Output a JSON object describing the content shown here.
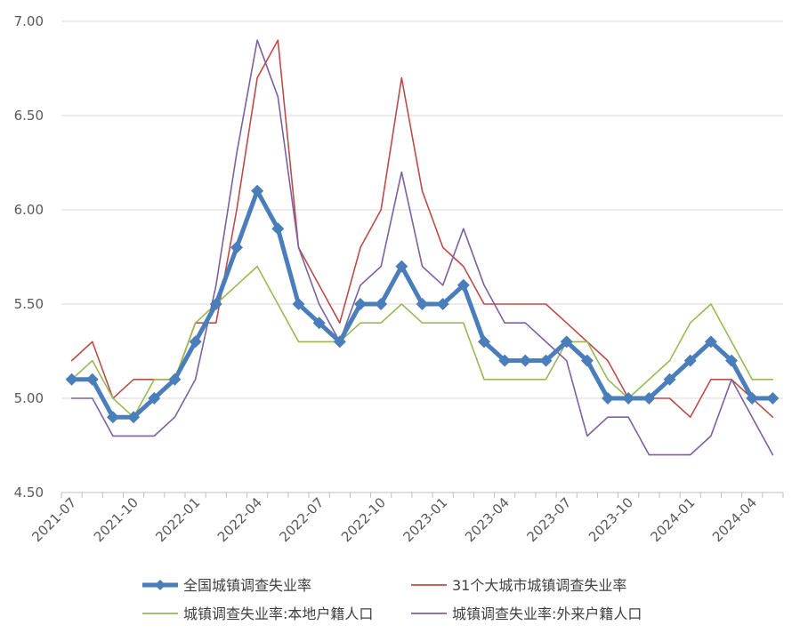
{
  "chart_data": {
    "type": "line",
    "title": "",
    "xlabel": "",
    "ylabel": "",
    "ylim": [
      4.5,
      7.0
    ],
    "yticks": [
      "4.50",
      "5.00",
      "5.50",
      "6.00",
      "6.50",
      "7.00"
    ],
    "x": [
      "2021-07",
      "2021-08",
      "2021-09",
      "2021-10",
      "2021-11",
      "2021-12",
      "2022-01",
      "2022-02",
      "2022-03",
      "2022-04",
      "2022-05",
      "2022-06",
      "2022-07",
      "2022-08",
      "2022-09",
      "2022-10",
      "2022-11",
      "2022-12",
      "2023-01",
      "2023-02",
      "2023-03",
      "2023-04",
      "2023-05",
      "2023-06",
      "2023-07",
      "2023-08",
      "2023-09",
      "2023-10",
      "2023-11",
      "2023-12",
      "2024-01",
      "2024-02",
      "2024-03",
      "2024-04",
      "2024-05"
    ],
    "xtick_labels": [
      "2021-07",
      "2021-10",
      "2022-01",
      "2022-04",
      "2022-07",
      "2022-10",
      "2023-01",
      "2023-04",
      "2023-07",
      "2023-10",
      "2024-01",
      "2024-04"
    ],
    "grid": true,
    "legend_position": "bottom",
    "series": [
      {
        "name": "全国城镇调查失业率",
        "color": "#4a7ebb",
        "values": [
          5.1,
          5.1,
          4.9,
          4.9,
          5.0,
          5.1,
          5.3,
          5.5,
          5.8,
          6.1,
          5.9,
          5.5,
          5.4,
          5.3,
          5.5,
          5.5,
          5.7,
          5.5,
          5.5,
          5.6,
          5.3,
          5.2,
          5.2,
          5.2,
          5.3,
          5.2,
          5.0,
          5.0,
          5.0,
          5.1,
          5.2,
          5.3,
          5.2,
          5.0,
          5.0
        ]
      },
      {
        "name": "31个大城市城镇调查失业率",
        "color": "#be4b48",
        "values": [
          5.2,
          5.3,
          5.0,
          5.1,
          5.1,
          5.1,
          5.4,
          5.4,
          6.0,
          6.7,
          6.9,
          5.8,
          5.6,
          5.4,
          5.8,
          6.0,
          6.7,
          6.1,
          5.8,
          5.7,
          5.5,
          5.5,
          5.5,
          5.5,
          5.4,
          5.3,
          5.2,
          5.0,
          5.0,
          5.0,
          4.9,
          5.1,
          5.1,
          5.0,
          4.9
        ]
      },
      {
        "name": "城镇调查失业率:本地户籍人口",
        "color": "#98b954",
        "values": [
          5.1,
          5.2,
          5.0,
          4.9,
          5.1,
          5.1,
          5.4,
          5.5,
          5.6,
          5.7,
          5.5,
          5.3,
          5.3,
          5.3,
          5.4,
          5.4,
          5.5,
          5.4,
          5.4,
          5.4,
          5.1,
          5.1,
          5.1,
          5.1,
          5.3,
          5.3,
          5.1,
          5.0,
          5.1,
          5.2,
          5.4,
          5.5,
          5.3,
          5.1,
          5.1
        ]
      },
      {
        "name": "城镇调查失业率:外来户籍人口",
        "color": "#7d60a0",
        "values": [
          5.0,
          5.0,
          4.8,
          4.8,
          4.8,
          4.9,
          5.1,
          5.6,
          6.3,
          6.9,
          6.6,
          5.8,
          5.5,
          5.3,
          5.6,
          5.7,
          6.2,
          5.7,
          5.6,
          5.9,
          5.6,
          5.4,
          5.4,
          5.3,
          5.2,
          4.8,
          4.9,
          4.9,
          4.7,
          4.7,
          4.7,
          4.8,
          5.1,
          4.9,
          4.7
        ]
      }
    ]
  }
}
